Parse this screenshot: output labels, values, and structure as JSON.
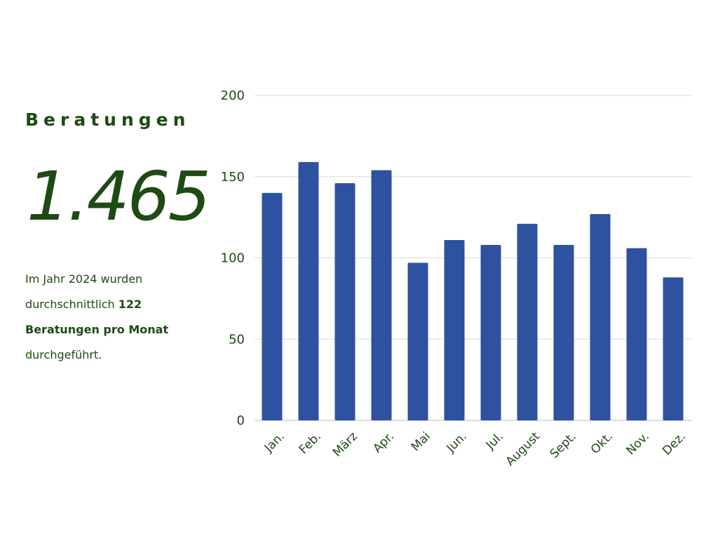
{
  "summary": {
    "heading": "Beratungen",
    "total": "1.465",
    "description_part1": "Im Jahr 2024 wurden durchschnittlich ",
    "description_bold": "122 Beratungen pro Monat",
    "description_part2": " durchgeführt."
  },
  "colors": {
    "accent_green": "#1e4a14",
    "bar_blue": "#2e51a0",
    "grid": "#dcdcdc"
  },
  "chart_data": {
    "type": "bar",
    "categories": [
      "Jan.",
      "Feb.",
      "März",
      "Apr.",
      "Mai",
      "Jun.",
      "Jul.",
      "August",
      "Sept.",
      "Okt.",
      "Nov.",
      "Dez."
    ],
    "values": [
      140,
      159,
      146,
      154,
      97,
      111,
      108,
      121,
      108,
      127,
      106,
      88
    ],
    "yticks": [
      0,
      50,
      100,
      150,
      200
    ],
    "ylim": [
      0,
      200
    ],
    "grid": true,
    "title": "",
    "xlabel": "",
    "ylabel": ""
  }
}
